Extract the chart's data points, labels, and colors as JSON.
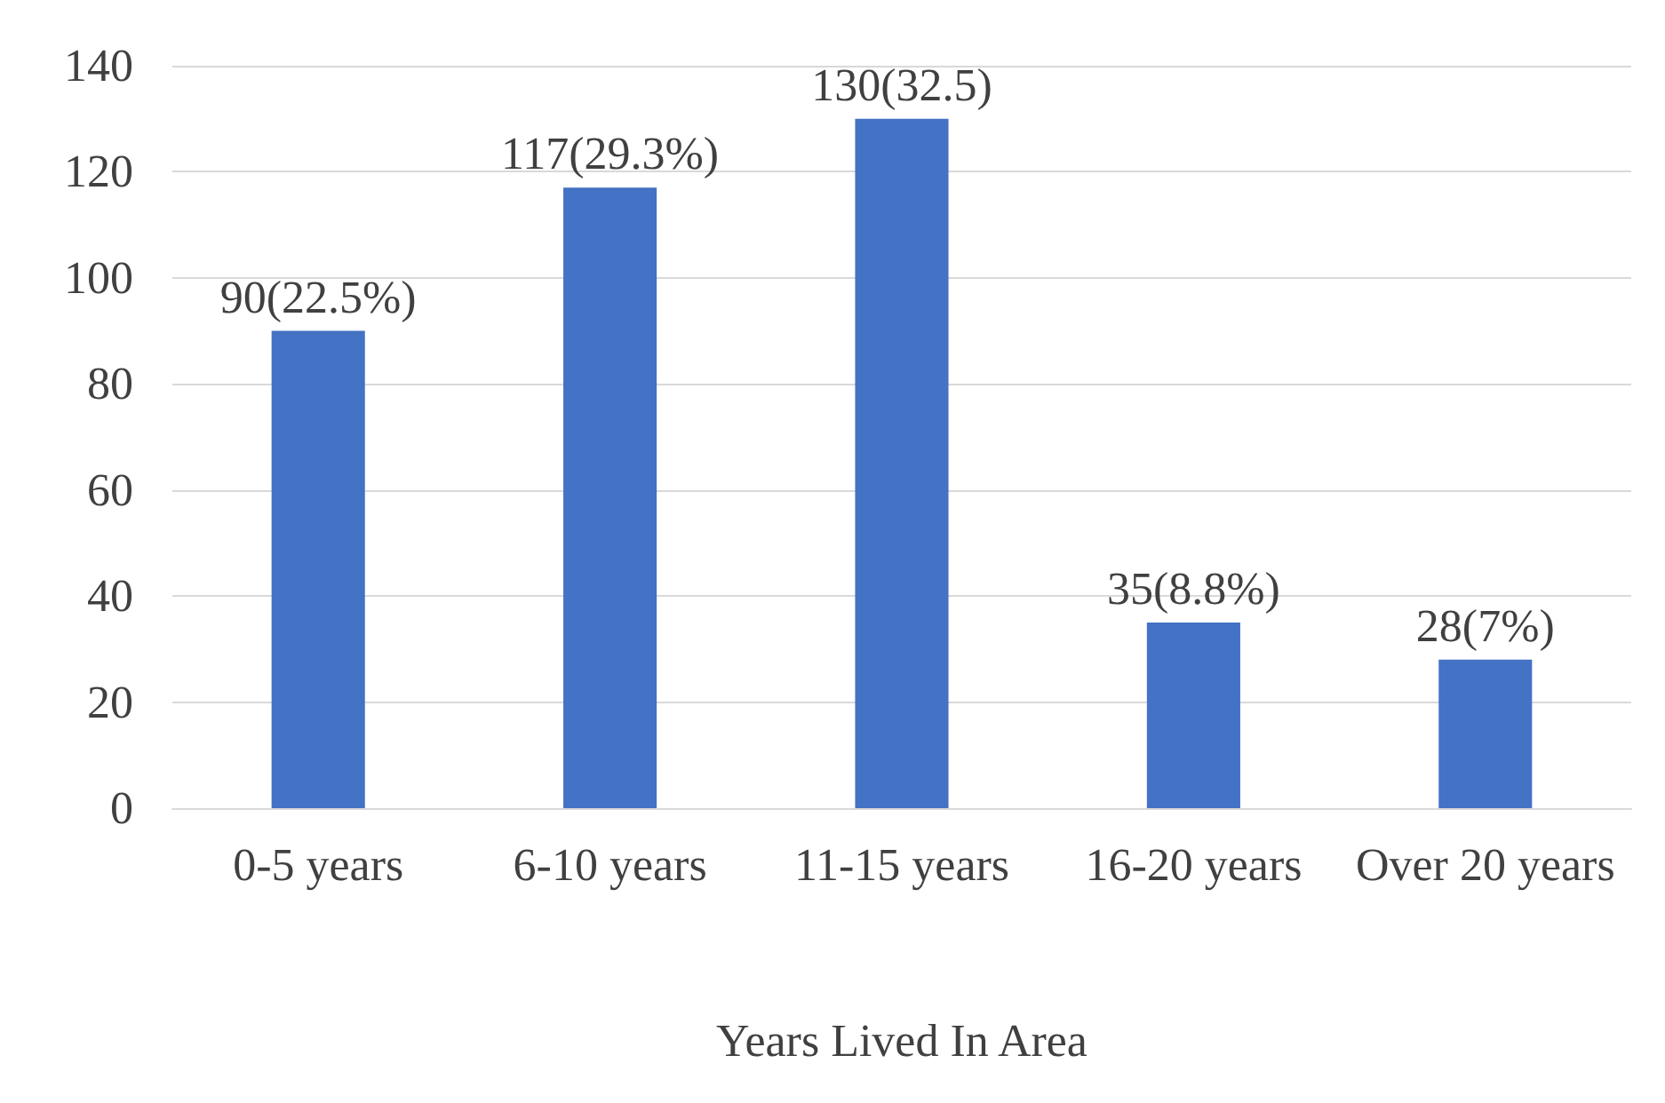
{
  "chart_data": {
    "type": "bar",
    "xlabel": "Years Lived In Area",
    "categories": [
      "0-5 years",
      "6-10 years",
      "11-15 years",
      "16-20 years",
      "Over 20 years"
    ],
    "values": [
      90,
      117,
      130,
      35,
      28
    ],
    "value_labels": [
      "90(22.5%)",
      "117(29.3%)",
      "130(32.5)",
      "35(8.8%)",
      "28(7%)"
    ],
    "color": "#4472c4",
    "ylim": [
      0,
      140
    ],
    "yticks": [
      0,
      20,
      40,
      60,
      80,
      100,
      120,
      140
    ],
    "grid": "y"
  }
}
